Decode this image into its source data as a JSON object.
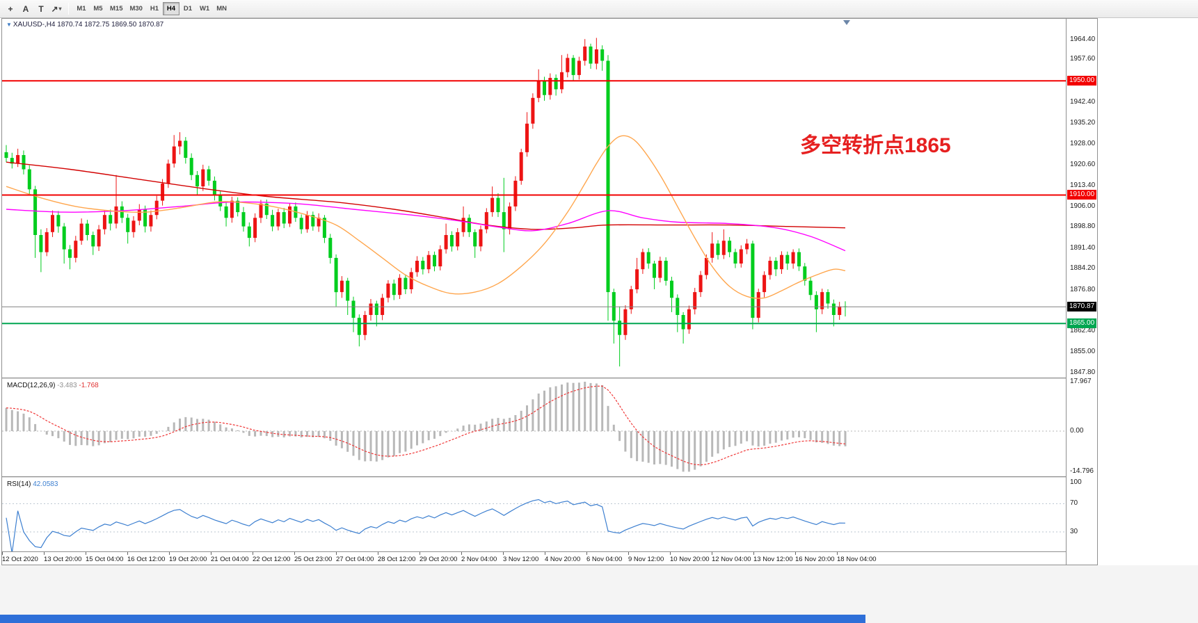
{
  "toolbar": {
    "tools": [
      {
        "name": "crosshair-icon",
        "glyph": "+"
      },
      {
        "name": "text-tool-icon",
        "glyph": "A"
      },
      {
        "name": "text-label-tool-icon",
        "glyph": "T"
      },
      {
        "name": "arrows-tool-icon",
        "glyph": "↗",
        "caret": "▾"
      }
    ],
    "timeframes": [
      "M1",
      "M5",
      "M15",
      "M30",
      "H1",
      "H4",
      "D1",
      "W1",
      "MN"
    ],
    "active_timeframe": "H4"
  },
  "chart_data": {
    "type": "candlestick",
    "symbol": "XAUUSD-",
    "timeframe": "H4",
    "symbol_line": "XAUUSD-,H4 1870.74 1872.75 1869.50 1870.87",
    "collapse_glyph": "▼",
    "ohlc": {
      "open": "1870.74",
      "high": "1872.75",
      "low": "1869.50",
      "close": "1870.87"
    },
    "annotation": {
      "text": "多空转折点1865",
      "color": "#e62020"
    },
    "colors": {
      "up": "#ed1414",
      "down": "#00cd1e",
      "ma_slow": "#d20000",
      "ma_mid": "#ff00ff",
      "ma_fast": "#ffa64d",
      "hline_red": "#f20000",
      "hline_green": "#00a651",
      "price_line": "#808080",
      "price_box": "#000000",
      "macd_hist": "#b8b8b8",
      "macd_signal": "#f03636",
      "rsi_line": "#3c7fd0"
    },
    "candles": [
      [
        1925,
        1927.5,
        1921.5,
        1923
      ],
      [
        1923,
        1924.8,
        1919.3,
        1921
      ],
      [
        1921,
        1926.2,
        1919.8,
        1924
      ],
      [
        1924,
        1925.6,
        1917.2,
        1919
      ],
      [
        1919,
        1920.4,
        1910,
        1912
      ],
      [
        1912,
        1913.2,
        1888,
        1896
      ],
      [
        1896,
        1898,
        1883,
        1890
      ],
      [
        1890,
        1898.4,
        1888.6,
        1897
      ],
      [
        1897,
        1904.6,
        1895.3,
        1903
      ],
      [
        1903,
        1904.4,
        1896.8,
        1899
      ],
      [
        1899,
        1900.2,
        1886,
        1891
      ],
      [
        1891,
        1892.5,
        1884,
        1888
      ],
      [
        1888,
        1895.7,
        1886.4,
        1894
      ],
      [
        1894,
        1901.8,
        1892.6,
        1900
      ],
      [
        1900,
        1901.3,
        1894.1,
        1896
      ],
      [
        1896,
        1897.2,
        1889,
        1892
      ],
      [
        1892,
        1899.5,
        1890.4,
        1898
      ],
      [
        1898,
        1904.7,
        1896.2,
        1903
      ],
      [
        1903,
        1904.9,
        1897.6,
        1900
      ],
      [
        1900,
        1917,
        1898.3,
        1906
      ],
      [
        1906,
        1907.8,
        1900.2,
        1902
      ],
      [
        1902,
        1903.4,
        1893,
        1897
      ],
      [
        1897,
        1902.6,
        1895.1,
        1901
      ],
      [
        1901,
        1906.8,
        1899.4,
        1905
      ],
      [
        1905,
        1906.3,
        1896.9,
        1899
      ],
      [
        1899,
        1904.6,
        1897.2,
        1903
      ],
      [
        1903,
        1909.7,
        1901.5,
        1908
      ],
      [
        1908,
        1915.6,
        1906.3,
        1914
      ],
      [
        1914,
        1922.4,
        1912.5,
        1921
      ],
      [
        1921,
        1931,
        1919.6,
        1927
      ],
      [
        1927,
        1932,
        1924.2,
        1929
      ],
      [
        1929,
        1930.3,
        1921,
        1923
      ],
      [
        1923,
        1924.6,
        1915.2,
        1917
      ],
      [
        1917,
        1918.4,
        1910,
        1913
      ],
      [
        1913,
        1920.6,
        1911.4,
        1919
      ],
      [
        1919,
        1920.2,
        1913.3,
        1915
      ],
      [
        1915,
        1916.5,
        1908.1,
        1910
      ],
      [
        1910,
        1911.3,
        1904.4,
        1906
      ],
      [
        1906,
        1907.6,
        1899,
        1902
      ],
      [
        1902,
        1909.4,
        1900.3,
        1908
      ],
      [
        1908,
        1909.2,
        1902.5,
        1904
      ],
      [
        1904,
        1905.8,
        1897.2,
        1899
      ],
      [
        1899,
        1900.4,
        1892,
        1895
      ],
      [
        1895,
        1903.6,
        1893.5,
        1902
      ],
      [
        1902,
        1908.3,
        1900.2,
        1907
      ],
      [
        1907,
        1908.4,
        1901.6,
        1903
      ],
      [
        1903,
        1904.8,
        1897.3,
        1899
      ],
      [
        1899,
        1905.2,
        1897.6,
        1904
      ],
      [
        1904,
        1905.5,
        1898.4,
        1900
      ],
      [
        1900,
        1907,
        1898.8,
        1906
      ],
      [
        1906,
        1907.4,
        1900.6,
        1902
      ],
      [
        1902,
        1903.2,
        1896.4,
        1898
      ],
      [
        1898,
        1904.4,
        1896.8,
        1903
      ],
      [
        1903,
        1904.2,
        1897.5,
        1899
      ],
      [
        1899,
        1903.6,
        1897.1,
        1902
      ],
      [
        1902,
        1903,
        1893.2,
        1895
      ],
      [
        1895,
        1896.4,
        1886,
        1888
      ],
      [
        1888,
        1889.2,
        1871,
        1876
      ],
      [
        1876,
        1881.6,
        1874,
        1880
      ],
      [
        1880,
        1881,
        1868,
        1873
      ],
      [
        1873,
        1874.4,
        1862,
        1867
      ],
      [
        1867,
        1868.2,
        1857,
        1861
      ],
      [
        1861,
        1869.4,
        1859.2,
        1868
      ],
      [
        1868,
        1873.6,
        1866,
        1872
      ],
      [
        1872,
        1873,
        1864,
        1868
      ],
      [
        1868,
        1875.4,
        1866.2,
        1874
      ],
      [
        1874,
        1880.2,
        1872.4,
        1879
      ],
      [
        1879,
        1880.4,
        1873.2,
        1875
      ],
      [
        1875,
        1882.3,
        1873.6,
        1881
      ],
      [
        1881,
        1882.2,
        1875.3,
        1877
      ],
      [
        1877,
        1884.5,
        1875.5,
        1883
      ],
      [
        1883,
        1888.6,
        1881.4,
        1887
      ],
      [
        1887,
        1888.3,
        1882.2,
        1884
      ],
      [
        1884,
        1890.4,
        1882.6,
        1889
      ],
      [
        1889,
        1890.2,
        1883.3,
        1885
      ],
      [
        1885,
        1892.4,
        1883.6,
        1891
      ],
      [
        1891,
        1900,
        1889.5,
        1896
      ],
      [
        1896,
        1897.3,
        1890.2,
        1892
      ],
      [
        1892,
        1898.4,
        1890.6,
        1897
      ],
      [
        1897,
        1906,
        1895.4,
        1902
      ],
      [
        1902,
        1903.2,
        1895.3,
        1897
      ],
      [
        1897,
        1898,
        1888,
        1892
      ],
      [
        1892,
        1899.3,
        1890.3,
        1898
      ],
      [
        1898,
        1905.4,
        1896.6,
        1904
      ],
      [
        1904,
        1913,
        1902.4,
        1909
      ],
      [
        1909,
        1910.6,
        1902.3,
        1904
      ],
      [
        1904,
        1916,
        1890,
        1898
      ],
      [
        1898,
        1907.4,
        1896.2,
        1906
      ],
      [
        1906,
        1916.6,
        1904.4,
        1915
      ],
      [
        1915,
        1926.2,
        1913.6,
        1925
      ],
      [
        1925,
        1939,
        1923.4,
        1935
      ],
      [
        1935,
        1945.6,
        1933.2,
        1944
      ],
      [
        1944,
        1954,
        1942.5,
        1950
      ],
      [
        1950,
        1951.4,
        1943,
        1945
      ],
      [
        1945,
        1952.6,
        1943.4,
        1951
      ],
      [
        1951,
        1952.2,
        1944.8,
        1947
      ],
      [
        1947,
        1959,
        1945.6,
        1953
      ],
      [
        1953,
        1959.4,
        1951.2,
        1958
      ],
      [
        1958,
        1959,
        1950,
        1952
      ],
      [
        1952,
        1958.4,
        1950.4,
        1957
      ],
      [
        1957,
        1964.6,
        1955.3,
        1962
      ],
      [
        1962,
        1963,
        1954.2,
        1956
      ],
      [
        1956,
        1965,
        1954,
        1961
      ],
      [
        1961,
        1962.4,
        1953.5,
        1957
      ],
      [
        1957,
        1959,
        1866,
        1876
      ],
      [
        1876,
        1877.2,
        1858,
        1866
      ],
      [
        1866,
        1871,
        1850,
        1861
      ],
      [
        1861,
        1871.4,
        1859.3,
        1870
      ],
      [
        1870,
        1878.2,
        1868.4,
        1877
      ],
      [
        1877,
        1888,
        1875.6,
        1884
      ],
      [
        1884,
        1891.2,
        1882.4,
        1890
      ],
      [
        1890,
        1891.4,
        1884.2,
        1886
      ],
      [
        1886,
        1887,
        1877,
        1881
      ],
      [
        1881,
        1888.4,
        1879.4,
        1887
      ],
      [
        1887,
        1888.2,
        1878.3,
        1880
      ],
      [
        1880,
        1881.4,
        1869,
        1874
      ],
      [
        1874,
        1875.2,
        1862,
        1868
      ],
      [
        1868,
        1869,
        1858,
        1863
      ],
      [
        1863,
        1871.3,
        1861.4,
        1870
      ],
      [
        1870,
        1877.5,
        1868.2,
        1876
      ],
      [
        1876,
        1883.4,
        1874.3,
        1882
      ],
      [
        1882,
        1889.2,
        1880.5,
        1888
      ],
      [
        1888,
        1897,
        1886.3,
        1893
      ],
      [
        1893,
        1894.2,
        1887.4,
        1889
      ],
      [
        1889,
        1898,
        1887.6,
        1894
      ],
      [
        1894,
        1895.3,
        1888.2,
        1890
      ],
      [
        1890,
        1891.2,
        1884.4,
        1886
      ],
      [
        1886,
        1892.4,
        1884.6,
        1891
      ],
      [
        1891,
        1894.6,
        1889.3,
        1893
      ],
      [
        1893,
        1894,
        1863,
        1867
      ],
      [
        1867,
        1877.2,
        1865.4,
        1876
      ],
      [
        1876,
        1883.3,
        1874.2,
        1882
      ],
      [
        1882,
        1888.4,
        1880.4,
        1887
      ],
      [
        1887,
        1888.2,
        1881.6,
        1884
      ],
      [
        1884,
        1890.3,
        1882.4,
        1889
      ],
      [
        1889,
        1890.2,
        1883.8,
        1886
      ],
      [
        1886,
        1891,
        1884.2,
        1890
      ],
      [
        1890,
        1891.3,
        1883.4,
        1885
      ],
      [
        1885,
        1886.2,
        1878.3,
        1880
      ],
      [
        1880,
        1881.4,
        1873.2,
        1875
      ],
      [
        1875,
        1876.3,
        1862,
        1870
      ],
      [
        1870,
        1877.2,
        1868.3,
        1876
      ],
      [
        1876,
        1877,
        1870.2,
        1872
      ],
      [
        1872,
        1873.4,
        1864,
        1868
      ],
      [
        1868,
        1872.6,
        1866.3,
        1871
      ],
      [
        1871,
        1872.8,
        1867.5,
        1870.87
      ]
    ],
    "moving_averages": [
      {
        "name": "ma-slow-red",
        "color": "#d20000",
        "points": [
          [
            0,
            1921.5
          ],
          [
            11,
            1919
          ],
          [
            23,
            1915.5
          ],
          [
            35,
            1912
          ],
          [
            45,
            1909.5
          ],
          [
            57,
            1907.5
          ],
          [
            67,
            1905
          ],
          [
            76,
            1902
          ],
          [
            83,
            1899.5
          ],
          [
            91,
            1898
          ],
          [
            98,
            1898.5
          ],
          [
            104,
            1899.5
          ],
          [
            115,
            1899.5
          ],
          [
            125,
            1899.5
          ],
          [
            135,
            1899
          ],
          [
            145,
            1898.5
          ]
        ]
      },
      {
        "name": "ma-mid-magenta",
        "color": "#ff00ff",
        "points": [
          [
            0,
            1905
          ],
          [
            10,
            1904
          ],
          [
            20,
            1904.5
          ],
          [
            30,
            1906
          ],
          [
            39,
            1907.5
          ],
          [
            50,
            1907
          ],
          [
            60,
            1905
          ],
          [
            70,
            1903
          ],
          [
            78,
            1901
          ],
          [
            85,
            1898.8
          ],
          [
            91,
            1897.5
          ],
          [
            97,
            1900
          ],
          [
            104,
            1904.5
          ],
          [
            110,
            1902
          ],
          [
            116,
            1900.5
          ],
          [
            125,
            1900
          ],
          [
            133,
            1898.5
          ],
          [
            139,
            1895.5
          ],
          [
            145,
            1890.5
          ]
        ]
      },
      {
        "name": "ma-fast-orange",
        "color": "#ffa64d",
        "points": [
          [
            0,
            1913
          ],
          [
            6,
            1909
          ],
          [
            12,
            1906
          ],
          [
            18,
            1904.5
          ],
          [
            24,
            1904
          ],
          [
            30,
            1905.5
          ],
          [
            36,
            1907.5
          ],
          [
            40,
            1907.5
          ],
          [
            46,
            1906
          ],
          [
            52,
            1903
          ],
          [
            57,
            1899.5
          ],
          [
            61,
            1894
          ],
          [
            65,
            1888
          ],
          [
            69,
            1882
          ],
          [
            73,
            1878
          ],
          [
            77,
            1875.5
          ],
          [
            81,
            1876
          ],
          [
            85,
            1879
          ],
          [
            89,
            1885
          ],
          [
            93,
            1893
          ],
          [
            97,
            1904
          ],
          [
            100,
            1914
          ],
          [
            102,
            1921
          ],
          [
            104,
            1927
          ],
          [
            106,
            1930.5
          ],
          [
            108,
            1930
          ],
          [
            110,
            1926
          ],
          [
            113,
            1917
          ],
          [
            116,
            1906
          ],
          [
            119,
            1895
          ],
          [
            122,
            1885
          ],
          [
            125,
            1878
          ],
          [
            128,
            1874.5
          ],
          [
            131,
            1874
          ],
          [
            134,
            1876.5
          ],
          [
            137,
            1879.5
          ],
          [
            140,
            1882
          ],
          [
            143,
            1884
          ],
          [
            145,
            1883.5
          ]
        ]
      }
    ],
    "horizontal_lines": [
      {
        "price": 1950.0,
        "label": "1950.00",
        "color": "#f20000"
      },
      {
        "price": 1910.0,
        "label": "1910.00",
        "color": "#f20000"
      },
      {
        "price": 1865.0,
        "label": "1865.00",
        "color": "#00a651"
      }
    ],
    "current_price": {
      "price": 1870.87,
      "label": "1870.87"
    },
    "y_axis": {
      "ticks": [
        "1964.40",
        "1957.60",
        "1942.40",
        "1935.20",
        "1928.00",
        "1920.60",
        "1913.40",
        "1906.00",
        "1898.80",
        "1891.40",
        "1884.20",
        "1876.80",
        "1869.60",
        "1862.40",
        "1855.00",
        "1847.80"
      ]
    },
    "x_axis": {
      "labels": [
        "12 Oct 2020",
        "13 Oct 20:00",
        "15 Oct 04:00",
        "16 Oct 12:00",
        "19 Oct 20:00",
        "21 Oct 04:00",
        "22 Oct 12:00",
        "25 Oct 23:00",
        "27 Oct 04:00",
        "28 Oct 12:00",
        "29 Oct 20:00",
        "2 Nov 04:00",
        "3 Nov 12:00",
        "4 Nov 20:00",
        "6 Nov 04:00",
        "9 Nov 12:00",
        "10 Nov 20:00",
        "12 Nov 04:00",
        "13 Nov 12:00",
        "16 Nov 20:00",
        "18 Nov 04:00"
      ]
    },
    "indicators": {
      "macd": {
        "name": "MACD(12,26,9)",
        "value_main": "-3.483",
        "value_signal": "-1.768",
        "fast": 12,
        "slow": 26,
        "signal": 9,
        "max": 17.967,
        "min": -14.796,
        "axis": [
          {
            "label": "17.967",
            "value": 17.967
          },
          {
            "label": "0.00",
            "value": 0
          },
          {
            "label": "-14.796",
            "value": -14.796
          }
        ]
      },
      "rsi": {
        "name": "RSI(14)",
        "value": "42.0583",
        "period": 14,
        "levels": [
          70,
          30
        ],
        "axis": [
          {
            "label": "100",
            "value": 100
          },
          {
            "label": "70",
            "value": 70
          },
          {
            "label": "30",
            "value": 30
          }
        ]
      }
    }
  }
}
